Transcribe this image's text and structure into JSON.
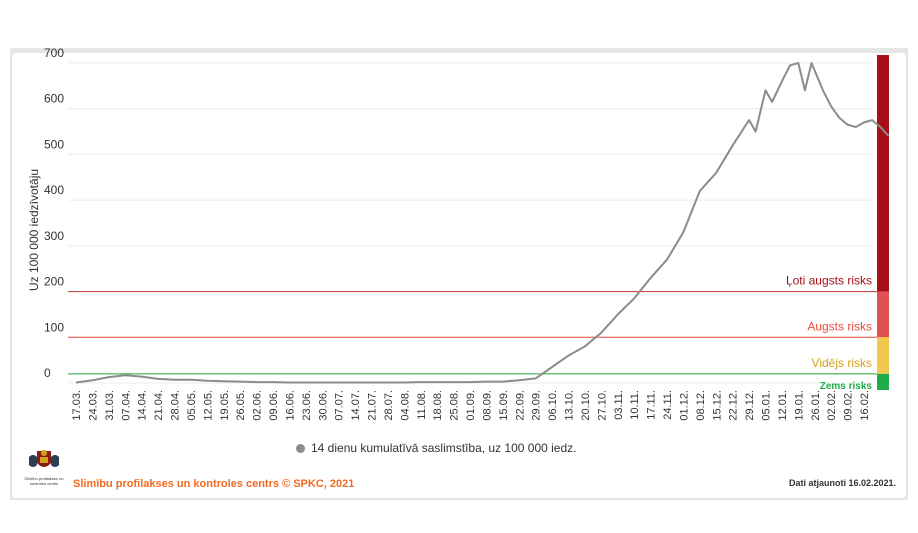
{
  "chart_data": {
    "type": "line",
    "ylabel": "Uz 100 000 iedzīvotāju",
    "ylim": [
      0,
      700
    ],
    "yticks": [
      0,
      100,
      200,
      300,
      400,
      500,
      600,
      700
    ],
    "xticks": [
      "17.03.",
      "24.03.",
      "31.03.",
      "07.04.",
      "14.04.",
      "21.04.",
      "28.04.",
      "05.05.",
      "12.05.",
      "19.05.",
      "26.05.",
      "02.06.",
      "09.06.",
      "16.06.",
      "23.06.",
      "30.06.",
      "07.07.",
      "14.07.",
      "21.07.",
      "28.07.",
      "04.08.",
      "11.08.",
      "18.08.",
      "25.08.",
      "01.09.",
      "08.09.",
      "15.09.",
      "22.09.",
      "29.09.",
      "06.10.",
      "13.10.",
      "20.10.",
      "27.10.",
      "03.11.",
      "10.11.",
      "17.11.",
      "24.11.",
      "01.12.",
      "08.12.",
      "15.12.",
      "22.12.",
      "29.12.",
      "05.01.",
      "12.01.",
      "19.01.",
      "26.01.",
      "02.02.",
      "09.02.",
      "16.02."
    ],
    "series": [
      {
        "name": "14 dienu kumulatīvā saslimstība, uz 100 000 iedz.",
        "color": "#8c8c8c",
        "points": [
          [
            0,
            1
          ],
          [
            1,
            6
          ],
          [
            2,
            13
          ],
          [
            3,
            17
          ],
          [
            4,
            14
          ],
          [
            5,
            9
          ],
          [
            6,
            7
          ],
          [
            7,
            7
          ],
          [
            8,
            5
          ],
          [
            9,
            4
          ],
          [
            10,
            3
          ],
          [
            11,
            2
          ],
          [
            12,
            2
          ],
          [
            13,
            1
          ],
          [
            14,
            1
          ],
          [
            15,
            1
          ],
          [
            16,
            1
          ],
          [
            17,
            1
          ],
          [
            18,
            1
          ],
          [
            19,
            1
          ],
          [
            20,
            1
          ],
          [
            21,
            2
          ],
          [
            22,
            2
          ],
          [
            23,
            2
          ],
          [
            24,
            2
          ],
          [
            25,
            3
          ],
          [
            26,
            3
          ],
          [
            27,
            6
          ],
          [
            28,
            10
          ],
          [
            29,
            35
          ],
          [
            30,
            60
          ],
          [
            31,
            80
          ],
          [
            32,
            110
          ],
          [
            33,
            150
          ],
          [
            34,
            185
          ],
          [
            35,
            230
          ],
          [
            36,
            270
          ],
          [
            37,
            330
          ],
          [
            38,
            420
          ],
          [
            39,
            460
          ],
          [
            40,
            520
          ],
          [
            41,
            575
          ],
          [
            41.4,
            550
          ],
          [
            42,
            640
          ],
          [
            42.4,
            615
          ],
          [
            43,
            660
          ],
          [
            43.5,
            695
          ],
          [
            44,
            700
          ],
          [
            44.4,
            640
          ],
          [
            44.8,
            700
          ],
          [
            45.5,
            640
          ],
          [
            46,
            605
          ],
          [
            46.5,
            580
          ],
          [
            47,
            565
          ],
          [
            47.5,
            560
          ],
          [
            48,
            570
          ],
          [
            48.5,
            575
          ],
          [
            49,
            560
          ],
          [
            49.5,
            540
          ]
        ]
      }
    ],
    "thresholds": [
      {
        "label": "Ļoti augsts risks",
        "value": 200,
        "color": "#c0392b"
      },
      {
        "label": "Augsts risks",
        "value": 100,
        "color": "#e74c3c"
      },
      {
        "label": "Vidējs risks",
        "value": 20,
        "color": "#f1c40f"
      },
      {
        "label": "Zems risks",
        "value": 0,
        "color": "#27ae60"
      }
    ],
    "risk_band_colors": [
      "#a50f15",
      "#e05252",
      "#f2c94c",
      "#1ead4a"
    ]
  },
  "footer": {
    "source": "Slimību profilakses un kontroles centrs © SPKC, 2021",
    "updated": "Dati atjaunoti 16.02.2021."
  },
  "logo": {
    "icon": "coat-of-arms-icon",
    "text": "Slimību profilakses un kontroles centrs"
  }
}
